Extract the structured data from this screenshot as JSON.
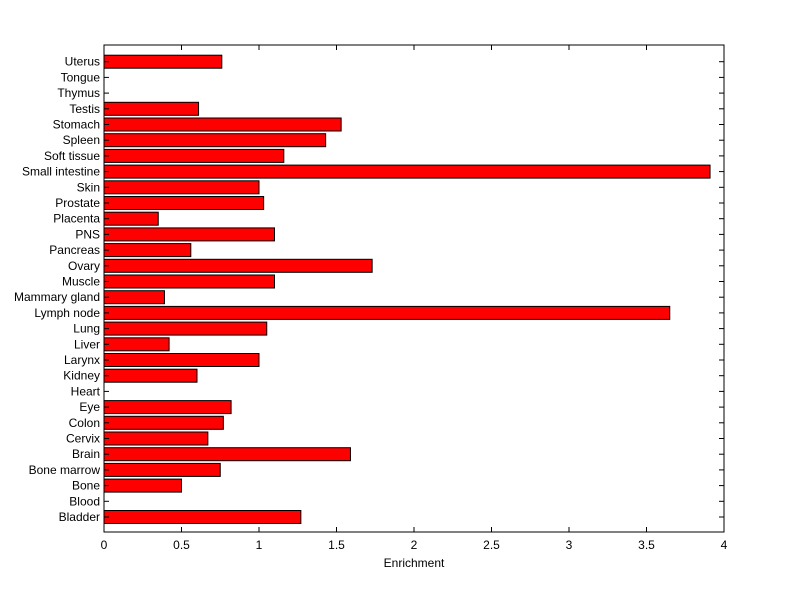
{
  "chart_data": {
    "type": "bar",
    "orientation": "horizontal",
    "title": "",
    "xlabel": "Enrichment",
    "ylabel": "",
    "xlim": [
      0,
      4
    ],
    "xticks": [
      "0",
      "0.5",
      "1",
      "1.5",
      "2",
      "2.5",
      "3",
      "3.5",
      "4"
    ],
    "grid": false,
    "bar_color": "#ff0000",
    "categories": [
      "Bladder",
      "Blood",
      "Bone",
      "Bone marrow",
      "Brain",
      "Cervix",
      "Colon",
      "Eye",
      "Heart",
      "Kidney",
      "Larynx",
      "Liver",
      "Lung",
      "Lymph node",
      "Mammary gland",
      "Muscle",
      "Ovary",
      "Pancreas",
      "PNS",
      "Placenta",
      "Prostate",
      "Skin",
      "Small intestine",
      "Soft tissue",
      "Spleen",
      "Stomach",
      "Testis",
      "Thymus",
      "Tongue",
      "Uterus"
    ],
    "values": [
      1.27,
      0,
      0.5,
      0.75,
      1.59,
      0.67,
      0.77,
      0.82,
      0,
      0.6,
      1.0,
      0.42,
      1.05,
      3.65,
      0.39,
      1.1,
      1.73,
      0.56,
      1.1,
      0.35,
      1.03,
      1.0,
      3.91,
      1.16,
      1.43,
      1.53,
      0.61,
      0,
      0,
      0.76
    ]
  }
}
